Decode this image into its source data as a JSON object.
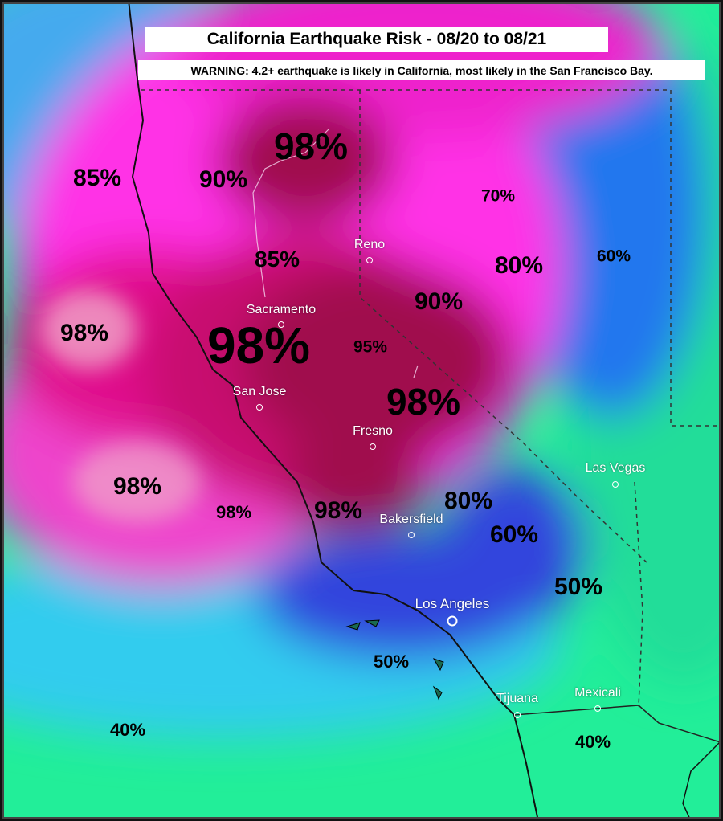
{
  "title": "California Earthquake Risk - 08/20 to 08/21",
  "warning": "WARNING: 4.2+ earthquake is likely in California, most likely in the San Francisco Bay.",
  "colors": {
    "risk_very_high": "#a0104e",
    "risk_high": "#e0108c",
    "risk_elevated": "#ff33e6",
    "risk_medium": "#4444ee",
    "risk_low": "#22ddcc",
    "risk_lowest": "#22ee88"
  },
  "risk_labels": [
    {
      "text": "98%"
    },
    {
      "text": "90%"
    },
    {
      "text": "85%"
    },
    {
      "text": "70%"
    },
    {
      "text": "85%"
    },
    {
      "text": "80%"
    },
    {
      "text": "60%"
    },
    {
      "text": "90%"
    },
    {
      "text": "98%"
    },
    {
      "text": "98%"
    },
    {
      "text": "95%"
    },
    {
      "text": "98%"
    },
    {
      "text": "98%"
    },
    {
      "text": "98%"
    },
    {
      "text": "98%"
    },
    {
      "text": "80%"
    },
    {
      "text": "60%"
    },
    {
      "text": "50%"
    },
    {
      "text": "50%"
    },
    {
      "text": "40%"
    },
    {
      "text": "40%"
    }
  ],
  "cities": [
    {
      "name": "Reno"
    },
    {
      "name": "Sacramento"
    },
    {
      "name": "San Jose"
    },
    {
      "name": "Fresno"
    },
    {
      "name": "Las Vegas"
    },
    {
      "name": "Bakersfield"
    },
    {
      "name": "Los Angeles"
    },
    {
      "name": "Tijuana"
    },
    {
      "name": "Mexicali"
    }
  ]
}
